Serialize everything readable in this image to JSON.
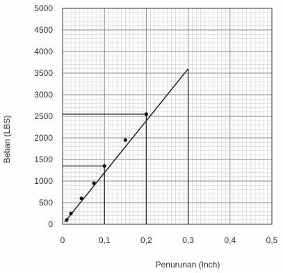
{
  "chart_data": {
    "type": "line",
    "title": "",
    "xlabel": "Penurunan (Inch)",
    "ylabel": "Beban (LBS)",
    "xlim": [
      0,
      0.5
    ],
    "ylim": [
      0,
      5000
    ],
    "x_ticks": [
      "0",
      "0,1",
      "0,2",
      "0,3",
      "0,4",
      "0,5"
    ],
    "x_tick_values": [
      0,
      0.1,
      0.2,
      0.3,
      0.4,
      0.5
    ],
    "y_ticks": [
      "0",
      "500",
      "1000",
      "1500",
      "2000",
      "2500",
      "3000",
      "3500",
      "4000",
      "4500",
      "5000"
    ],
    "y_tick_values": [
      0,
      500,
      1000,
      1500,
      2000,
      2500,
      3000,
      3500,
      4000,
      4500,
      5000
    ],
    "grid": true,
    "minor_grid_step": {
      "x": 0.01,
      "y": 100
    },
    "series": [
      {
        "points": [
          {
            "x": 0.01,
            "y": 100
          },
          {
            "x": 0.02,
            "y": 250
          },
          {
            "x": 0.045,
            "y": 600
          },
          {
            "x": 0.075,
            "y": 950
          },
          {
            "x": 0.1,
            "y": 1350
          },
          {
            "x": 0.15,
            "y": 1950
          },
          {
            "x": 0.2,
            "y": 2550
          }
        ]
      }
    ],
    "trend_line": {
      "from": {
        "x": 0.005,
        "y": 50
      },
      "to": {
        "x": 0.3,
        "y": 3600
      }
    },
    "reference_lines": [
      {
        "kind": "vertical",
        "x": 0.1,
        "y_to": 1350
      },
      {
        "kind": "horizontal",
        "y": 1350,
        "x_to": 0.1
      },
      {
        "kind": "vertical",
        "x": 0.2,
        "y_to": 2550
      },
      {
        "kind": "horizontal",
        "y": 2550,
        "x_to": 0.2
      },
      {
        "kind": "vertical",
        "x": 0.3,
        "y_to": 3600
      }
    ],
    "colors": {
      "line": "#222222",
      "points": "#111111",
      "grid_minor": "#c9c9c9",
      "grid_major": "#8a8a8a",
      "reference": "#333333"
    }
  }
}
